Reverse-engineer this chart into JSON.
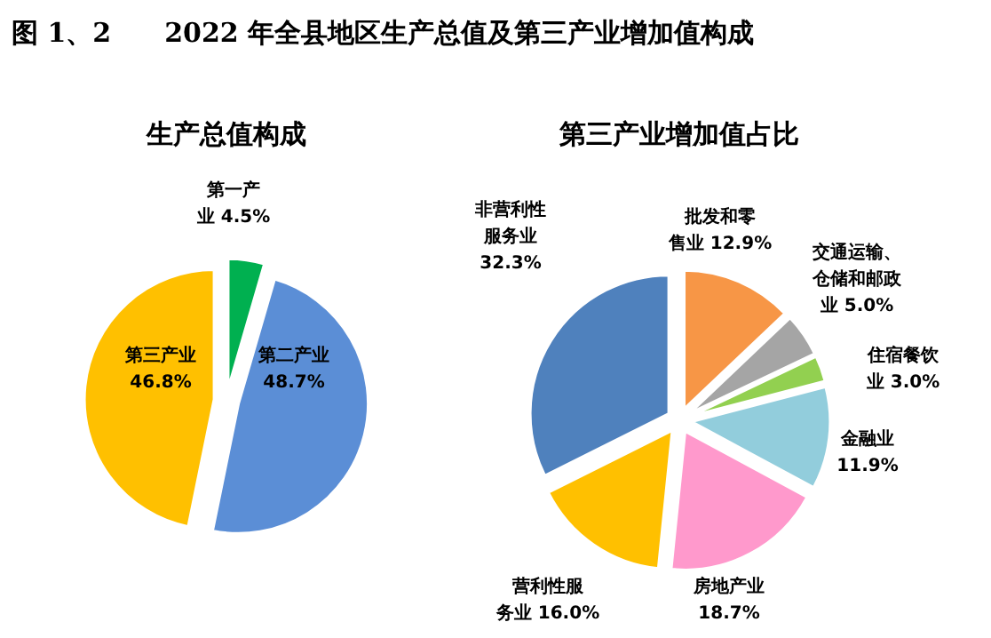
{
  "chart_data": [
    {
      "type": "pie",
      "title": "生产总值构成",
      "annotations": [
        "图 1、2　　2022 年全县地区生产总值及第三产业增加值构成"
      ],
      "categories": [
        "第一产业",
        "第二产业",
        "第三产业"
      ],
      "values": [
        4.5,
        48.7,
        46.8
      ],
      "value_labels": [
        "4.5%",
        "48.7%",
        "46.8%"
      ],
      "colors": [
        "#00b050",
        "#5b8ed6",
        "#ffc000"
      ]
    },
    {
      "type": "pie",
      "title": "第三产业增加值占比",
      "categories": [
        "批发和零售业",
        "交通运输、仓储和邮政业",
        "住宿餐饮业",
        "金融业",
        "房地产业",
        "营利性服务业",
        "非营利性服务业"
      ],
      "values": [
        12.9,
        5.0,
        3.0,
        11.9,
        18.7,
        16.0,
        32.3
      ],
      "value_labels": [
        "12.9%",
        "5.0%",
        "3.0%",
        "11.9%",
        "18.7%",
        "16.0%",
        "32.3%"
      ],
      "colors": [
        "#f79646",
        "#a5a5a5",
        "#92d050",
        "#92cddc",
        "#ff99cc",
        "#ffc000",
        "#4f81bd"
      ]
    }
  ]
}
